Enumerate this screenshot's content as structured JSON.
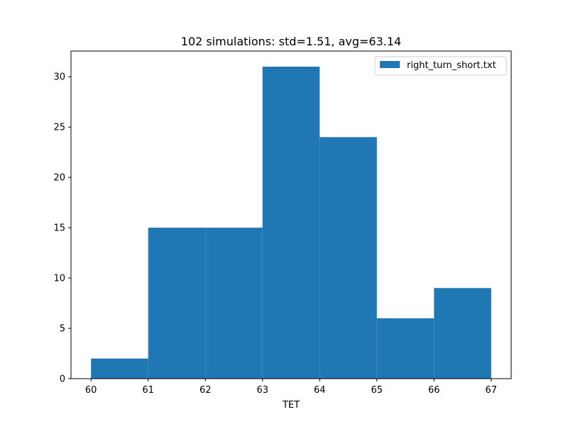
{
  "colors": {
    "bar": "#1f77b4",
    "axis": "#000000",
    "background": "#ffffff"
  },
  "chart_data": {
    "type": "bar",
    "title": "102 simulations: std=1.51, avg=63.14",
    "xlabel": "TET",
    "ylabel": "",
    "bin_edges": [
      60,
      61,
      62,
      63,
      64,
      65,
      66,
      67
    ],
    "values": [
      2,
      15,
      15,
      31,
      24,
      6,
      9
    ],
    "xlim": [
      59.65,
      67.35
    ],
    "ylim": [
      0,
      32.55
    ],
    "xticks": [
      60,
      61,
      62,
      63,
      64,
      65,
      66,
      67
    ],
    "yticks": [
      0,
      5,
      10,
      15,
      20,
      25,
      30
    ],
    "grid": false,
    "legend": {
      "position": "top-right",
      "entries": [
        {
          "label": "right_turn_short.txt",
          "color": "#1f77b4"
        }
      ]
    }
  }
}
